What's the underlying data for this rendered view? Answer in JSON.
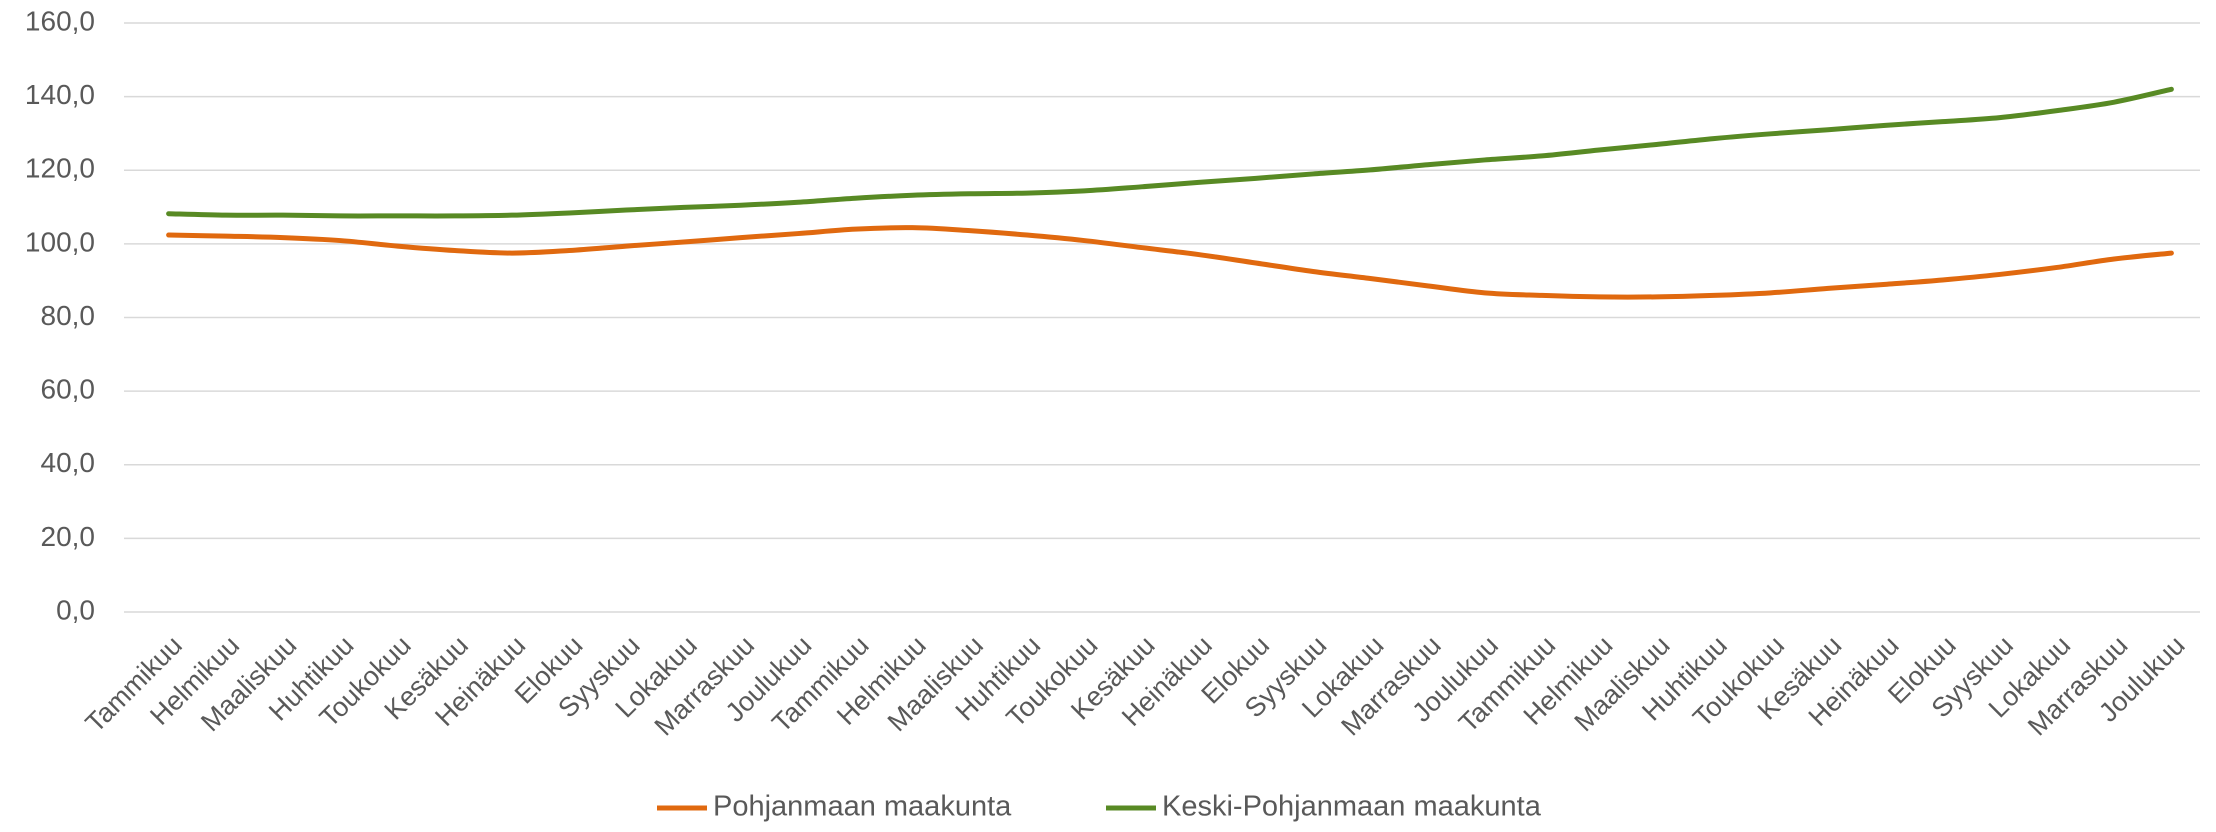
{
  "chart_data": {
    "type": "line",
    "categories": [
      "Tammikuu",
      "Helmikuu",
      "Maaliskuu",
      "Huhtikuu",
      "Toukokuu",
      "Kesäkuu",
      "Heinäkuu",
      "Elokuu",
      "Syyskuu",
      "Lokakuu",
      "Marraskuu",
      "Joulukuu",
      "Tammikuu",
      "Helmikuu",
      "Maaliskuu",
      "Huhtikuu",
      "Toukokuu",
      "Kesäkuu",
      "Heinäkuu",
      "Elokuu",
      "Syyskuu",
      "Lokakuu",
      "Marraskuu",
      "Joulukuu",
      "Tammikuu",
      "Helmikuu",
      "Maaliskuu",
      "Huhtikuu",
      "Toukokuu",
      "Kesäkuu",
      "Heinäkuu",
      "Elokuu",
      "Syyskuu",
      "Lokakuu",
      "Marraskuu",
      "Joulukuu"
    ],
    "series": [
      {
        "name": "Pohjanmaan maakunta",
        "color": "#e0690f",
        "values": [
          102.4,
          102.1,
          101.7,
          100.9,
          99.4,
          98.2,
          97.5,
          98.2,
          99.4,
          100.5,
          101.7,
          102.8,
          104.0,
          104.4,
          103.6,
          102.4,
          100.9,
          99.0,
          97.1,
          94.8,
          92.5,
          90.6,
          88.6,
          86.7,
          86.0,
          85.6,
          85.6,
          86.0,
          86.7,
          87.9,
          89.0,
          90.2,
          91.7,
          93.6,
          95.9,
          97.5
        ]
      },
      {
        "name": "Keski-Pohjanmaan maakunta",
        "color": "#588a24",
        "values": [
          108.2,
          107.8,
          107.8,
          107.6,
          107.6,
          107.6,
          107.8,
          108.4,
          109.2,
          109.9,
          110.5,
          111.3,
          112.4,
          113.2,
          113.6,
          113.8,
          114.4,
          115.5,
          116.7,
          117.8,
          119.0,
          120.1,
          121.5,
          122.8,
          123.9,
          125.5,
          127.0,
          128.6,
          129.9,
          131.0,
          132.2,
          133.2,
          134.3,
          136.2,
          138.5,
          142.0
        ]
      }
    ],
    "ylim": [
      0,
      160
    ],
    "yticks": [
      {
        "value": 0,
        "label": "0,0"
      },
      {
        "value": 20,
        "label": "20,0"
      },
      {
        "value": 40,
        "label": "40,0"
      },
      {
        "value": 60,
        "label": "60,0"
      },
      {
        "value": 80,
        "label": "80,0"
      },
      {
        "value": 100,
        "label": "100,0"
      },
      {
        "value": 120,
        "label": "120,0"
      },
      {
        "value": 140,
        "label": "140,0"
      },
      {
        "value": 160,
        "label": "160,0"
      }
    ],
    "grid": true,
    "legend": "bottom"
  }
}
